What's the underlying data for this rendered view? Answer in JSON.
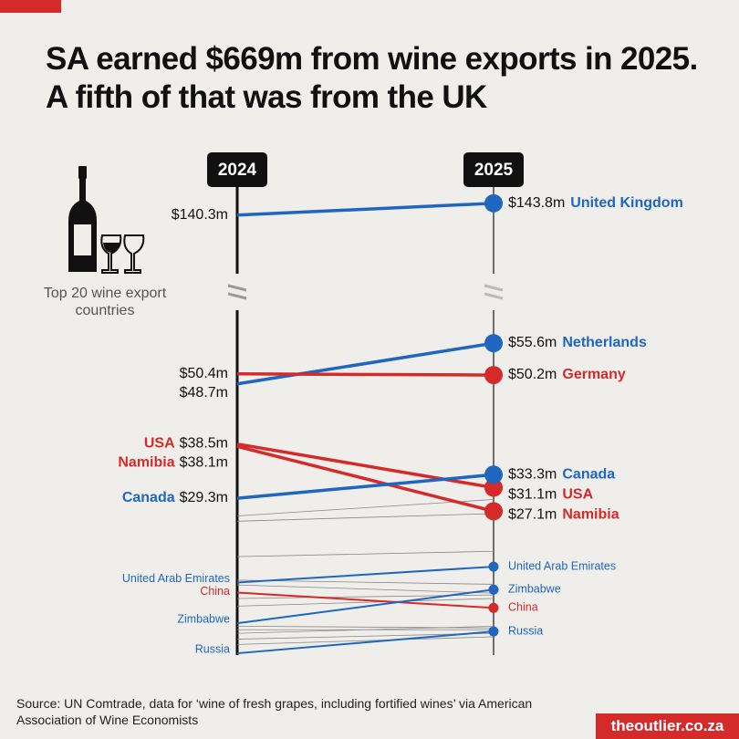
{
  "chart_data": {
    "type": "slope",
    "title": "SA earned $669m from wine exports in 2025. A fifth of that was from the UK",
    "caption": "Top 20 wine export countries",
    "source": "Source: UN Comtrade, data for ‘wine of fresh grapes, including fortified wines’ via American Association of Wine Economists",
    "brand": "theoutlier.co.za",
    "categories": [
      "2024",
      "2025"
    ],
    "ylim": [
      2.7,
      61.2
    ],
    "upper_ylim": [
      123,
      148.6
    ],
    "series": [
      {
        "name": "United Kingdom",
        "color": "#1f66c1",
        "values": [
          140.3,
          143.8
        ],
        "value_labels": [
          "$140.3m",
          "$143.8m"
        ],
        "axis": "upper",
        "highlight": true,
        "left_name": false
      },
      {
        "name": "Netherlands",
        "color": "#1f66c1",
        "values": [
          48.7,
          55.6
        ],
        "value_labels": [
          "$48.7m",
          "$55.6m"
        ],
        "highlight": true,
        "left_name": false
      },
      {
        "name": "Germany",
        "color": "#d42a2a",
        "values": [
          50.4,
          50.2
        ],
        "value_labels": [
          "$50.4m",
          "$50.2m"
        ],
        "highlight": true,
        "left_name": false
      },
      {
        "name": "USA",
        "color": "#d42a2a",
        "values": [
          38.5,
          31.1
        ],
        "value_labels": [
          "$38.5m",
          "$31.1m"
        ],
        "highlight": true,
        "left_name": true
      },
      {
        "name": "Namibia",
        "color": "#d42a2a",
        "values": [
          38.1,
          27.1
        ],
        "value_labels": [
          "$38.1m",
          "$27.1m"
        ],
        "highlight": true,
        "left_name": true
      },
      {
        "name": "Canada",
        "color": "#1f66c1",
        "values": [
          29.3,
          33.3
        ],
        "value_labels": [
          "$29.3m",
          "$33.3m"
        ],
        "highlight": true,
        "left_name": true
      },
      {
        "name": "United Arab Emirates",
        "color": "#1f66c1",
        "values": [
          15.0,
          17.7
        ]
      },
      {
        "name": "China",
        "color": "#d42a2a",
        "values": [
          13.3,
          10.7
        ]
      },
      {
        "name": "Zimbabwe",
        "color": "#1f66c1",
        "values": [
          8.1,
          13.8
        ]
      },
      {
        "name": "Russia",
        "color": "#1f66c1",
        "values": [
          3.0,
          6.7
        ]
      },
      {
        "color": "#888888",
        "values": [
          26.3,
          29.1
        ]
      },
      {
        "color": "#888888",
        "values": [
          25.4,
          26.7
        ]
      },
      {
        "color": "#888888",
        "values": [
          19.4,
          20.3
        ]
      },
      {
        "color": "#888888",
        "values": [
          15.4,
          14.7
        ]
      },
      {
        "color": "#888888",
        "values": [
          14.6,
          13.2
        ]
      },
      {
        "color": "#888888",
        "values": [
          12.3,
          12.9
        ]
      },
      {
        "color": "#888888",
        "values": [
          11.0,
          12.3
        ]
      },
      {
        "color": "#888888",
        "values": [
          7.6,
          7.3
        ]
      },
      {
        "color": "#888888",
        "values": [
          7.0,
          7.0
        ]
      },
      {
        "color": "#888888",
        "values": [
          6.4,
          7.6
        ]
      },
      {
        "color": "#888888",
        "values": [
          5.4,
          6.4
        ]
      },
      {
        "color": "#888888",
        "values": [
          4.5,
          5.8
        ]
      }
    ]
  }
}
